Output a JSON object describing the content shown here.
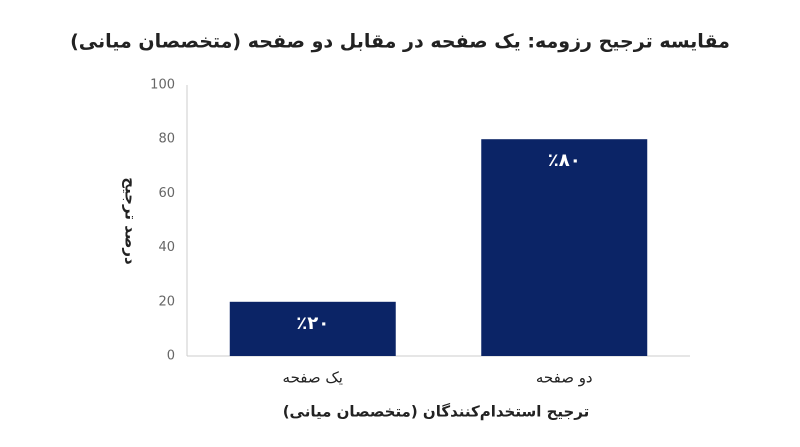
{
  "chart_data": {
    "type": "bar",
    "title": "مقایسه ترجیح رزومه: یک صفحه در مقابل دو صفحه (متخصصان میانی)",
    "x_label": "ترجیح استخدام‌کنندگان (متخصصان میانی)",
    "y_label": "درصد ترجیح",
    "categories": [
      "یک صفحه",
      "دو صفحه"
    ],
    "values": [
      20,
      80
    ],
    "value_labels": [
      "٪۲۰",
      "٪۸۰"
    ],
    "color": "#0b2466",
    "ylim": [
      0,
      100
    ],
    "yticks": [
      0,
      20,
      40,
      60,
      80,
      100
    ],
    "grid": false
  }
}
